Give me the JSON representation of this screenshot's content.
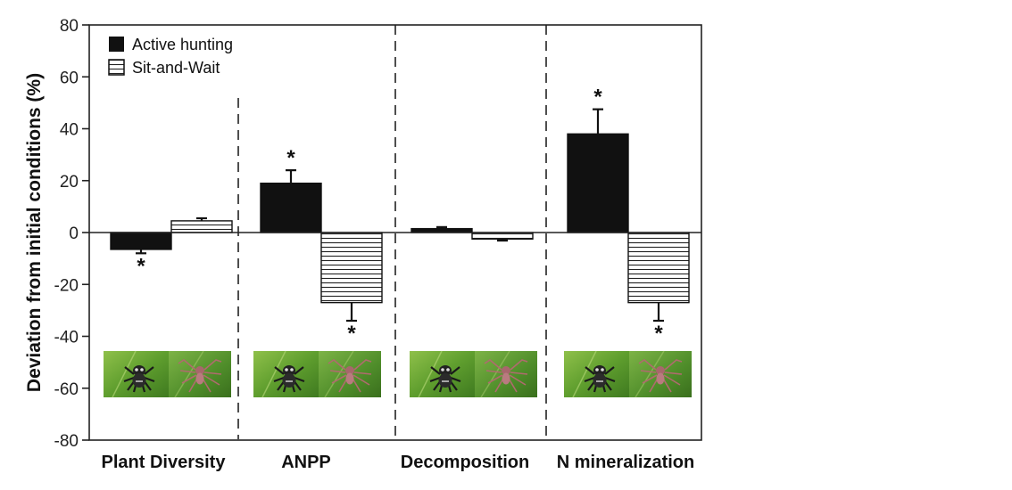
{
  "chart_data": {
    "type": "bar",
    "title": "",
    "xlabel": "",
    "ylabel": "Deviation from initial conditions (%)",
    "ylim": [
      -80,
      80
    ],
    "yticks": [
      80,
      60,
      40,
      20,
      0,
      -20,
      -40,
      -60,
      -80
    ],
    "categories": [
      "Plant Diversity",
      "ANPP",
      "Decomposition",
      "N mineralization"
    ],
    "series": [
      {
        "name": "Active hunting",
        "style": "solid",
        "color": "#111111",
        "values": [
          -6.5,
          19,
          1.5,
          38
        ],
        "errors": [
          1.5,
          5,
          0.6,
          9.5
        ],
        "significant": [
          true,
          true,
          false,
          true
        ]
      },
      {
        "name": "Sit-and-Wait",
        "style": "horizontal-stripes",
        "color": "#ffffff",
        "values": [
          4.5,
          -27,
          -2.5,
          -27
        ],
        "errors": [
          1,
          7,
          0.6,
          7
        ],
        "significant": [
          false,
          true,
          false,
          true
        ]
      }
    ],
    "significance_marker": "*",
    "grid": false,
    "legend_position": "top-left",
    "category_separators": "dashed vertical lines"
  },
  "images": {
    "photo_alt_left": "jumping spider",
    "photo_alt_right": "wolf spider"
  }
}
